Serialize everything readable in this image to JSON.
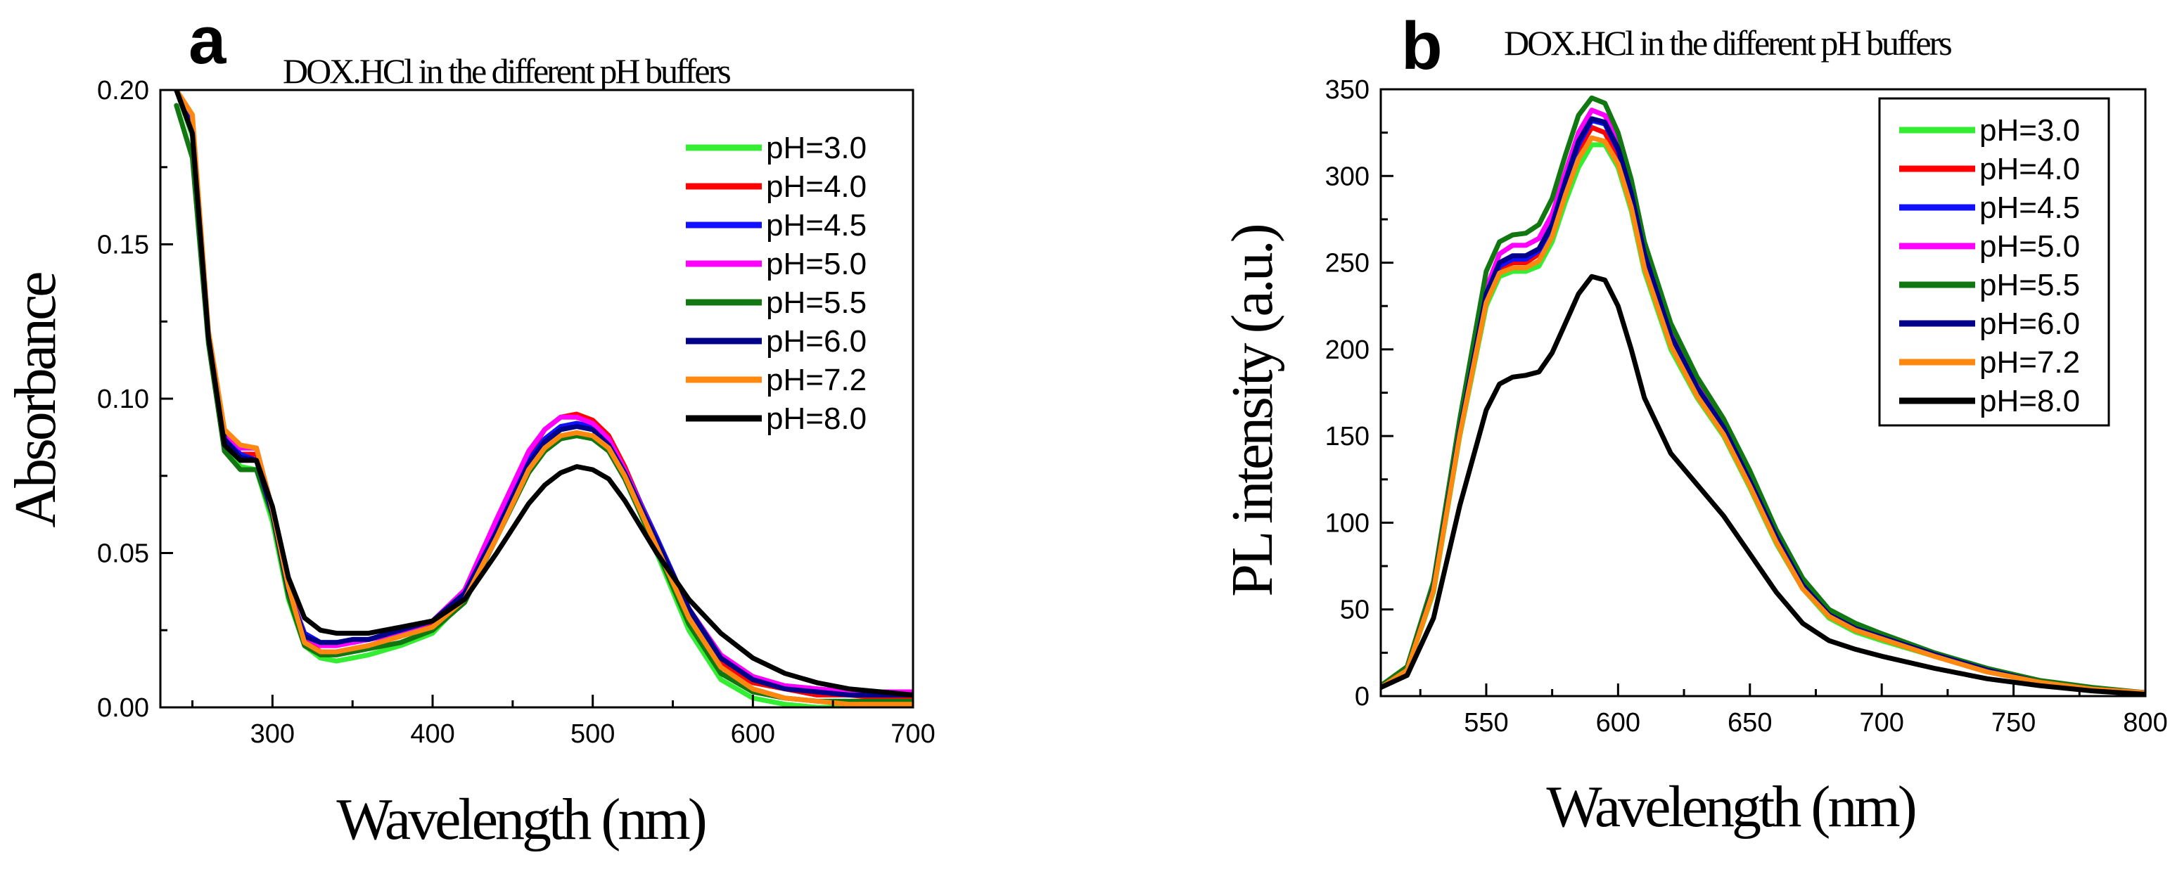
{
  "figure": {
    "panels": [
      {
        "id": "a",
        "letter": "a",
        "subtitle": "DOX.HCl in the different pH buffers",
        "xlabel": "Wavelength (nm)",
        "ylabel": "Absorbance",
        "xlim": [
          230,
          700
        ],
        "ylim": [
          0,
          0.2
        ],
        "xticks": [
          300,
          400,
          500,
          600,
          700
        ],
        "yticks": [
          0.0,
          0.05,
          0.1,
          0.15,
          0.2
        ],
        "ytick_labels": [
          "0.00",
          "0.05",
          "0.10",
          "0.15",
          "0.20"
        ],
        "legend_boxed": false
      },
      {
        "id": "b",
        "letter": "b",
        "subtitle": "DOX.HCl in the different pH buffers",
        "xlabel": "Wavelength (nm)",
        "ylabel": "PL intensity (a.u.)",
        "xlim": [
          510,
          800
        ],
        "ylim": [
          0,
          350
        ],
        "xticks": [
          550,
          600,
          650,
          700,
          750,
          800
        ],
        "yticks": [
          0,
          50,
          100,
          150,
          200,
          250,
          300,
          350
        ],
        "ytick_labels": [
          "0",
          "50",
          "100",
          "150",
          "200",
          "250",
          "300",
          "350"
        ],
        "legend_boxed": true
      }
    ]
  },
  "chart_data": [
    {
      "type": "line",
      "title": "DOX.HCl in the different pH buffers",
      "xlabel": "Wavelength (nm)",
      "ylabel": "Absorbance",
      "xlim": [
        230,
        700
      ],
      "ylim": [
        0,
        0.2
      ],
      "legend": "top-right",
      "grid": false,
      "x": [
        240,
        250,
        260,
        270,
        280,
        290,
        300,
        310,
        320,
        330,
        340,
        350,
        360,
        380,
        400,
        420,
        440,
        460,
        470,
        480,
        490,
        500,
        510,
        520,
        540,
        560,
        580,
        600,
        620,
        640,
        660,
        680,
        700
      ],
      "series": [
        {
          "name": "pH=3.0",
          "color": "#33ee33",
          "values": [
            0.2,
            0.185,
            0.12,
            0.085,
            0.078,
            0.077,
            0.06,
            0.035,
            0.02,
            0.016,
            0.015,
            0.016,
            0.017,
            0.02,
            0.024,
            0.035,
            0.055,
            0.077,
            0.085,
            0.09,
            0.091,
            0.09,
            0.085,
            0.075,
            0.05,
            0.025,
            0.009,
            0.003,
            0.001,
            0.0,
            0.0,
            0.0,
            0.0
          ]
        },
        {
          "name": "pH=4.0",
          "color": "#ff0000",
          "values": [
            0.2,
            0.19,
            0.12,
            0.087,
            0.082,
            0.082,
            0.063,
            0.038,
            0.022,
            0.018,
            0.018,
            0.019,
            0.02,
            0.023,
            0.027,
            0.038,
            0.06,
            0.082,
            0.09,
            0.094,
            0.095,
            0.093,
            0.088,
            0.078,
            0.054,
            0.03,
            0.014,
            0.008,
            0.006,
            0.004,
            0.004,
            0.003,
            0.003
          ]
        },
        {
          "name": "pH=4.5",
          "color": "#1111ff",
          "values": [
            0.2,
            0.188,
            0.12,
            0.088,
            0.082,
            0.08,
            0.063,
            0.038,
            0.024,
            0.021,
            0.021,
            0.021,
            0.022,
            0.024,
            0.028,
            0.037,
            0.058,
            0.08,
            0.087,
            0.091,
            0.092,
            0.091,
            0.086,
            0.077,
            0.055,
            0.032,
            0.016,
            0.009,
            0.007,
            0.006,
            0.005,
            0.005,
            0.005
          ]
        },
        {
          "name": "pH=5.0",
          "color": "#ff00ff",
          "values": [
            0.2,
            0.186,
            0.12,
            0.089,
            0.084,
            0.084,
            0.064,
            0.039,
            0.023,
            0.02,
            0.02,
            0.021,
            0.022,
            0.024,
            0.028,
            0.038,
            0.061,
            0.083,
            0.09,
            0.094,
            0.094,
            0.092,
            0.087,
            0.077,
            0.054,
            0.032,
            0.017,
            0.01,
            0.007,
            0.006,
            0.005,
            0.005,
            0.005
          ]
        },
        {
          "name": "pH=5.5",
          "color": "#117711",
          "values": [
            0.195,
            0.178,
            0.118,
            0.083,
            0.077,
            0.077,
            0.062,
            0.036,
            0.02,
            0.017,
            0.017,
            0.018,
            0.019,
            0.021,
            0.025,
            0.034,
            0.055,
            0.076,
            0.083,
            0.087,
            0.088,
            0.087,
            0.083,
            0.074,
            0.051,
            0.027,
            0.011,
            0.005,
            0.003,
            0.002,
            0.002,
            0.002,
            0.002
          ]
        },
        {
          "name": "pH=6.0",
          "color": "#000088",
          "values": [
            0.2,
            0.186,
            0.12,
            0.087,
            0.081,
            0.08,
            0.063,
            0.038,
            0.023,
            0.021,
            0.021,
            0.022,
            0.022,
            0.025,
            0.028,
            0.037,
            0.057,
            0.079,
            0.086,
            0.09,
            0.091,
            0.09,
            0.085,
            0.076,
            0.054,
            0.032,
            0.016,
            0.009,
            0.006,
            0.005,
            0.004,
            0.004,
            0.004
          ]
        },
        {
          "name": "pH=7.2",
          "color": "#ff8811",
          "values": [
            0.2,
            0.192,
            0.122,
            0.09,
            0.085,
            0.084,
            0.064,
            0.039,
            0.021,
            0.018,
            0.018,
            0.019,
            0.02,
            0.023,
            0.026,
            0.035,
            0.055,
            0.077,
            0.084,
            0.088,
            0.089,
            0.088,
            0.084,
            0.075,
            0.052,
            0.029,
            0.013,
            0.006,
            0.003,
            0.002,
            0.001,
            0.001,
            0.001
          ]
        },
        {
          "name": "pH=8.0",
          "color": "#000000",
          "values": [
            0.2,
            0.186,
            0.12,
            0.085,
            0.08,
            0.08,
            0.065,
            0.042,
            0.029,
            0.025,
            0.024,
            0.024,
            0.024,
            0.026,
            0.028,
            0.035,
            0.05,
            0.066,
            0.072,
            0.076,
            0.078,
            0.077,
            0.074,
            0.067,
            0.05,
            0.035,
            0.024,
            0.016,
            0.011,
            0.008,
            0.006,
            0.005,
            0.004
          ]
        }
      ]
    },
    {
      "type": "line",
      "title": "DOX.HCl in the different pH buffers",
      "xlabel": "Wavelength (nm)",
      "ylabel": "PL intensity (a.u.)",
      "xlim": [
        510,
        800
      ],
      "ylim": [
        0,
        350
      ],
      "legend": "top-right",
      "grid": false,
      "x": [
        510,
        520,
        530,
        540,
        550,
        555,
        560,
        565,
        570,
        575,
        580,
        585,
        590,
        595,
        600,
        605,
        610,
        620,
        630,
        640,
        650,
        660,
        670,
        680,
        690,
        700,
        720,
        740,
        760,
        780,
        800
      ],
      "series": [
        {
          "name": "pH=3.0",
          "color": "#33ee33",
          "values": [
            5,
            15,
            60,
            150,
            225,
            242,
            245,
            245,
            248,
            262,
            285,
            305,
            318,
            318,
            305,
            280,
            245,
            200,
            172,
            150,
            120,
            88,
            62,
            45,
            37,
            32,
            23,
            14,
            8,
            4,
            2
          ]
        },
        {
          "name": "pH=4.0",
          "color": "#ff0000",
          "values": [
            5,
            15,
            62,
            152,
            228,
            245,
            250,
            250,
            255,
            268,
            292,
            315,
            328,
            325,
            310,
            285,
            250,
            205,
            175,
            152,
            122,
            90,
            63,
            46,
            38,
            33,
            23,
            14,
            8,
            4,
            2
          ]
        },
        {
          "name": "pH=4.5",
          "color": "#1111ff",
          "values": [
            5,
            15,
            62,
            153,
            230,
            248,
            252,
            252,
            257,
            270,
            295,
            318,
            332,
            330,
            315,
            290,
            255,
            208,
            178,
            155,
            125,
            92,
            64,
            47,
            39,
            34,
            24,
            15,
            8,
            4,
            2
          ]
        },
        {
          "name": "pH=5.0",
          "color": "#ff00ff",
          "values": [
            5,
            16,
            64,
            156,
            235,
            255,
            260,
            260,
            264,
            278,
            302,
            325,
            338,
            335,
            320,
            293,
            258,
            210,
            180,
            157,
            126,
            93,
            65,
            48,
            40,
            34,
            24,
            15,
            8,
            4,
            2
          ]
        },
        {
          "name": "pH=5.5",
          "color": "#117711",
          "values": [
            6,
            17,
            66,
            160,
            245,
            262,
            266,
            267,
            272,
            287,
            312,
            335,
            345,
            342,
            325,
            298,
            262,
            215,
            184,
            160,
            130,
            96,
            68,
            50,
            42,
            36,
            25,
            16,
            9,
            5,
            2
          ]
        },
        {
          "name": "pH=6.0",
          "color": "#000088",
          "values": [
            5,
            15,
            62,
            153,
            232,
            250,
            254,
            254,
            258,
            272,
            297,
            320,
            333,
            331,
            316,
            290,
            255,
            208,
            178,
            155,
            124,
            92,
            64,
            47,
            39,
            34,
            24,
            15,
            8,
            4,
            2
          ]
        },
        {
          "name": "pH=7.2",
          "color": "#ff8811",
          "values": [
            5,
            15,
            61,
            151,
            227,
            244,
            247,
            247,
            251,
            265,
            289,
            310,
            322,
            320,
            307,
            282,
            247,
            202,
            173,
            151,
            121,
            89,
            62,
            46,
            38,
            33,
            23,
            14,
            8,
            4,
            2
          ]
        },
        {
          "name": "pH=8.0",
          "color": "#000000",
          "values": [
            5,
            12,
            45,
            110,
            165,
            180,
            184,
            185,
            187,
            198,
            215,
            232,
            242,
            240,
            225,
            200,
            172,
            140,
            122,
            104,
            82,
            60,
            42,
            32,
            27,
            23,
            16,
            10,
            6,
            3,
            1
          ]
        }
      ]
    }
  ]
}
